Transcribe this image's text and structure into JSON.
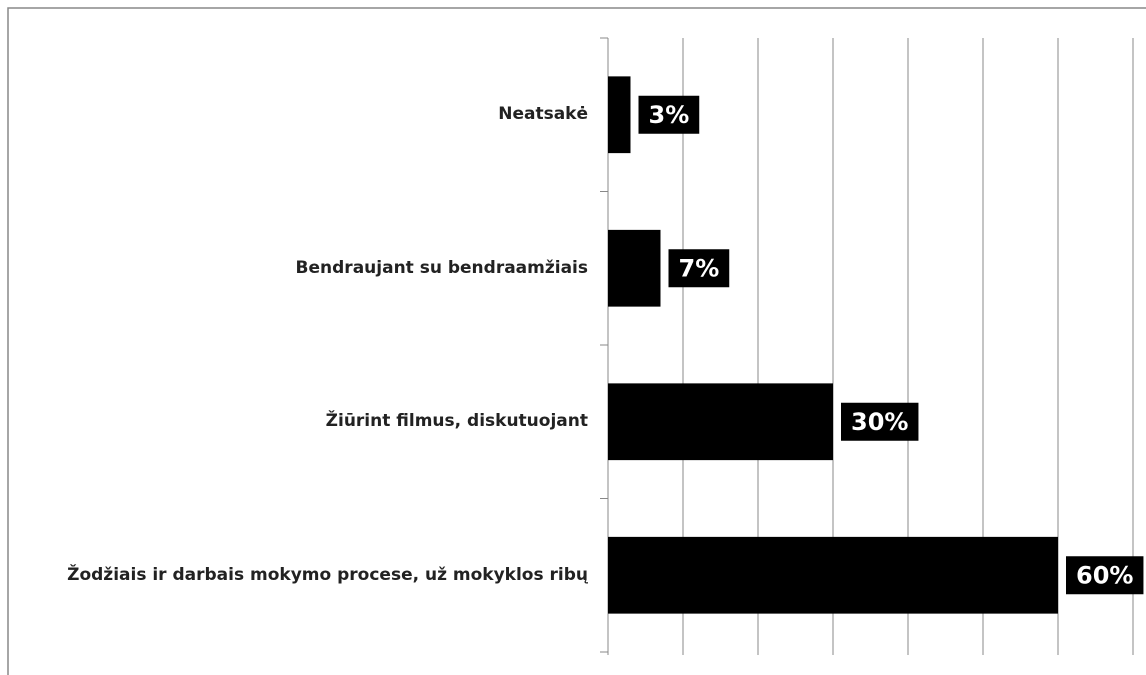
{
  "chart_data": {
    "type": "bar",
    "orientation": "horizontal",
    "categories": [
      "Neatsakė",
      "Bendraujant su bendraamžiais",
      "Žiūrint filmus, diskutuojant",
      "Žodžiais ir darbais mokymo procese, už mokyklos ribų"
    ],
    "values": [
      3,
      7,
      30,
      60
    ],
    "value_labels": [
      "3%",
      "7%",
      "30%",
      "60%"
    ],
    "color": "#000000",
    "xlim": [
      0,
      70
    ],
    "xticks": [
      0,
      10,
      20,
      30,
      40,
      50,
      60,
      70
    ],
    "grid": true
  }
}
